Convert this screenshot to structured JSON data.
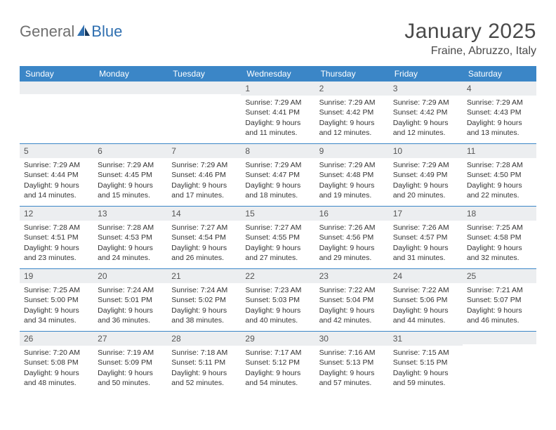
{
  "logo": {
    "part1": "General",
    "part2": "Blue"
  },
  "title": "January 2025",
  "location": "Fraine, Abruzzo, Italy",
  "colors": {
    "header_bg": "#3b86c7",
    "daynum_bg": "#eceef0",
    "rule": "#3b86c7",
    "text": "#333333",
    "logo_gray": "#6f6f6f",
    "logo_blue": "#2f6fb0"
  },
  "dow": [
    "Sunday",
    "Monday",
    "Tuesday",
    "Wednesday",
    "Thursday",
    "Friday",
    "Saturday"
  ],
  "weeks": [
    [
      {
        "day": "",
        "lines": []
      },
      {
        "day": "",
        "lines": []
      },
      {
        "day": "",
        "lines": []
      },
      {
        "day": "1",
        "lines": [
          "Sunrise: 7:29 AM",
          "Sunset: 4:41 PM",
          "Daylight: 9 hours",
          "and 11 minutes."
        ]
      },
      {
        "day": "2",
        "lines": [
          "Sunrise: 7:29 AM",
          "Sunset: 4:42 PM",
          "Daylight: 9 hours",
          "and 12 minutes."
        ]
      },
      {
        "day": "3",
        "lines": [
          "Sunrise: 7:29 AM",
          "Sunset: 4:42 PM",
          "Daylight: 9 hours",
          "and 12 minutes."
        ]
      },
      {
        "day": "4",
        "lines": [
          "Sunrise: 7:29 AM",
          "Sunset: 4:43 PM",
          "Daylight: 9 hours",
          "and 13 minutes."
        ]
      }
    ],
    [
      {
        "day": "5",
        "lines": [
          "Sunrise: 7:29 AM",
          "Sunset: 4:44 PM",
          "Daylight: 9 hours",
          "and 14 minutes."
        ]
      },
      {
        "day": "6",
        "lines": [
          "Sunrise: 7:29 AM",
          "Sunset: 4:45 PM",
          "Daylight: 9 hours",
          "and 15 minutes."
        ]
      },
      {
        "day": "7",
        "lines": [
          "Sunrise: 7:29 AM",
          "Sunset: 4:46 PM",
          "Daylight: 9 hours",
          "and 17 minutes."
        ]
      },
      {
        "day": "8",
        "lines": [
          "Sunrise: 7:29 AM",
          "Sunset: 4:47 PM",
          "Daylight: 9 hours",
          "and 18 minutes."
        ]
      },
      {
        "day": "9",
        "lines": [
          "Sunrise: 7:29 AM",
          "Sunset: 4:48 PM",
          "Daylight: 9 hours",
          "and 19 minutes."
        ]
      },
      {
        "day": "10",
        "lines": [
          "Sunrise: 7:29 AM",
          "Sunset: 4:49 PM",
          "Daylight: 9 hours",
          "and 20 minutes."
        ]
      },
      {
        "day": "11",
        "lines": [
          "Sunrise: 7:28 AM",
          "Sunset: 4:50 PM",
          "Daylight: 9 hours",
          "and 22 minutes."
        ]
      }
    ],
    [
      {
        "day": "12",
        "lines": [
          "Sunrise: 7:28 AM",
          "Sunset: 4:51 PM",
          "Daylight: 9 hours",
          "and 23 minutes."
        ]
      },
      {
        "day": "13",
        "lines": [
          "Sunrise: 7:28 AM",
          "Sunset: 4:53 PM",
          "Daylight: 9 hours",
          "and 24 minutes."
        ]
      },
      {
        "day": "14",
        "lines": [
          "Sunrise: 7:27 AM",
          "Sunset: 4:54 PM",
          "Daylight: 9 hours",
          "and 26 minutes."
        ]
      },
      {
        "day": "15",
        "lines": [
          "Sunrise: 7:27 AM",
          "Sunset: 4:55 PM",
          "Daylight: 9 hours",
          "and 27 minutes."
        ]
      },
      {
        "day": "16",
        "lines": [
          "Sunrise: 7:26 AM",
          "Sunset: 4:56 PM",
          "Daylight: 9 hours",
          "and 29 minutes."
        ]
      },
      {
        "day": "17",
        "lines": [
          "Sunrise: 7:26 AM",
          "Sunset: 4:57 PM",
          "Daylight: 9 hours",
          "and 31 minutes."
        ]
      },
      {
        "day": "18",
        "lines": [
          "Sunrise: 7:25 AM",
          "Sunset: 4:58 PM",
          "Daylight: 9 hours",
          "and 32 minutes."
        ]
      }
    ],
    [
      {
        "day": "19",
        "lines": [
          "Sunrise: 7:25 AM",
          "Sunset: 5:00 PM",
          "Daylight: 9 hours",
          "and 34 minutes."
        ]
      },
      {
        "day": "20",
        "lines": [
          "Sunrise: 7:24 AM",
          "Sunset: 5:01 PM",
          "Daylight: 9 hours",
          "and 36 minutes."
        ]
      },
      {
        "day": "21",
        "lines": [
          "Sunrise: 7:24 AM",
          "Sunset: 5:02 PM",
          "Daylight: 9 hours",
          "and 38 minutes."
        ]
      },
      {
        "day": "22",
        "lines": [
          "Sunrise: 7:23 AM",
          "Sunset: 5:03 PM",
          "Daylight: 9 hours",
          "and 40 minutes."
        ]
      },
      {
        "day": "23",
        "lines": [
          "Sunrise: 7:22 AM",
          "Sunset: 5:04 PM",
          "Daylight: 9 hours",
          "and 42 minutes."
        ]
      },
      {
        "day": "24",
        "lines": [
          "Sunrise: 7:22 AM",
          "Sunset: 5:06 PM",
          "Daylight: 9 hours",
          "and 44 minutes."
        ]
      },
      {
        "day": "25",
        "lines": [
          "Sunrise: 7:21 AM",
          "Sunset: 5:07 PM",
          "Daylight: 9 hours",
          "and 46 minutes."
        ]
      }
    ],
    [
      {
        "day": "26",
        "lines": [
          "Sunrise: 7:20 AM",
          "Sunset: 5:08 PM",
          "Daylight: 9 hours",
          "and 48 minutes."
        ]
      },
      {
        "day": "27",
        "lines": [
          "Sunrise: 7:19 AM",
          "Sunset: 5:09 PM",
          "Daylight: 9 hours",
          "and 50 minutes."
        ]
      },
      {
        "day": "28",
        "lines": [
          "Sunrise: 7:18 AM",
          "Sunset: 5:11 PM",
          "Daylight: 9 hours",
          "and 52 minutes."
        ]
      },
      {
        "day": "29",
        "lines": [
          "Sunrise: 7:17 AM",
          "Sunset: 5:12 PM",
          "Daylight: 9 hours",
          "and 54 minutes."
        ]
      },
      {
        "day": "30",
        "lines": [
          "Sunrise: 7:16 AM",
          "Sunset: 5:13 PM",
          "Daylight: 9 hours",
          "and 57 minutes."
        ]
      },
      {
        "day": "31",
        "lines": [
          "Sunrise: 7:15 AM",
          "Sunset: 5:15 PM",
          "Daylight: 9 hours",
          "and 59 minutes."
        ]
      },
      {
        "day": "",
        "lines": []
      }
    ]
  ]
}
